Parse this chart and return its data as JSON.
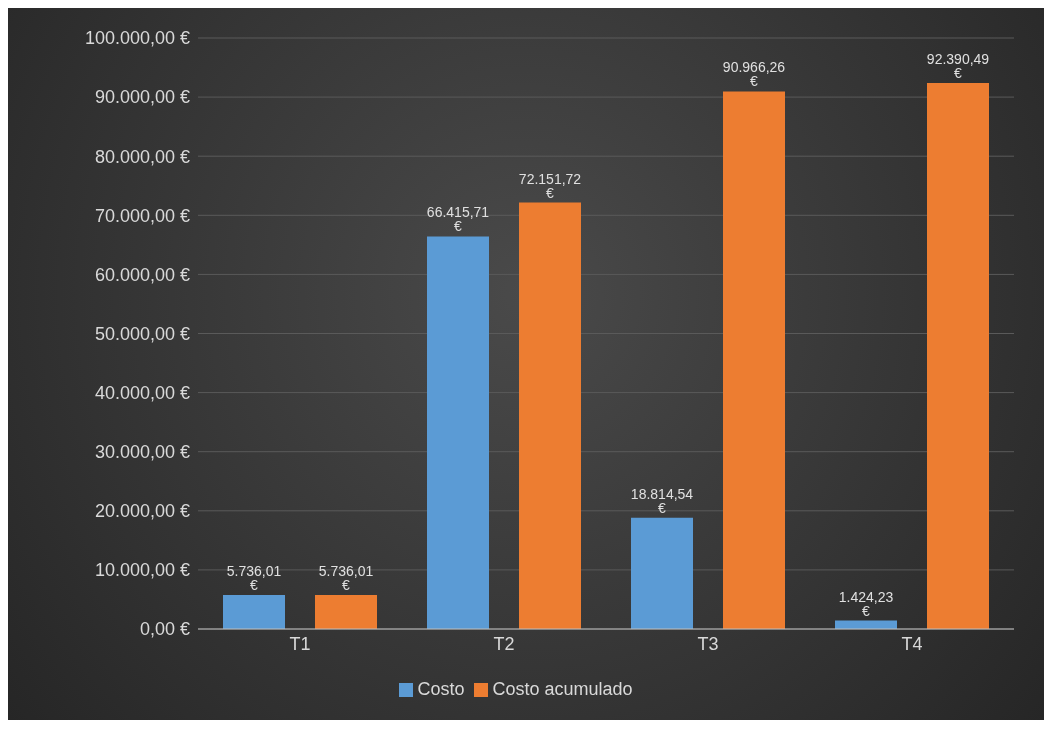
{
  "chart_data": {
    "type": "bar",
    "categories": [
      "T1",
      "T2",
      "T3",
      "T4"
    ],
    "series": [
      {
        "name": "Costo",
        "color": "#5b9bd5",
        "values": [
          5736.01,
          66415.71,
          18814.54,
          1424.23
        ],
        "value_labels": [
          "5.736,01 €",
          "66.415,71 €",
          "18.814,54 €",
          "1.424,23 €"
        ]
      },
      {
        "name": "Costo acumulado",
        "color": "#ed7d31",
        "values": [
          5736.01,
          72151.72,
          90966.26,
          92390.49
        ],
        "value_labels": [
          "5.736,01 €",
          "72.151,72 €",
          "90.966,26 €",
          "92.390,49 €"
        ]
      }
    ],
    "ylim": [
      0,
      100000
    ],
    "yticks": [
      {
        "value": 0,
        "label": "0,00 €"
      },
      {
        "value": 10000,
        "label": "10.000,00 €"
      },
      {
        "value": 20000,
        "label": "20.000,00 €"
      },
      {
        "value": 30000,
        "label": "30.000,00 €"
      },
      {
        "value": 40000,
        "label": "40.000,00 €"
      },
      {
        "value": 50000,
        "label": "50.000,00 €"
      },
      {
        "value": 60000,
        "label": "60.000,00 €"
      },
      {
        "value": 70000,
        "label": "70.000,00 €"
      },
      {
        "value": 80000,
        "label": "80.000,00 €"
      },
      {
        "value": 90000,
        "label": "90.000,00 €"
      },
      {
        "value": 100000,
        "label": "100.000,00 €"
      }
    ],
    "grid": "y",
    "legend": "bottom"
  }
}
